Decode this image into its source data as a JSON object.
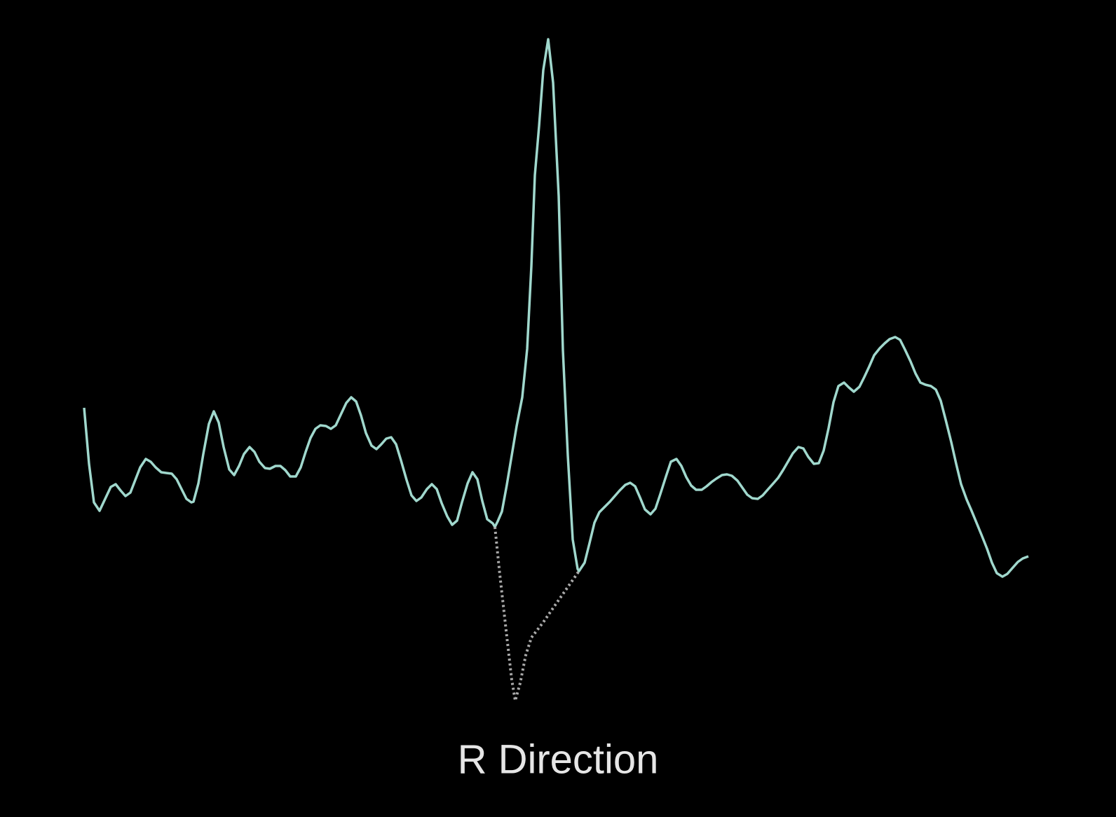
{
  "chart_data": {
    "type": "line",
    "title": "R Direction",
    "series": [
      {
        "color": "#a0d8cd",
        "style": "solid",
        "x": [
          120,
          127,
          134,
          142,
          150,
          158,
          165,
          172,
          179,
          186,
          193,
          200,
          208,
          215,
          222,
          230,
          237,
          245,
          252,
          259,
          266,
          273,
          276,
          283,
          290,
          298,
          305,
          312,
          319,
          327,
          334,
          341,
          348,
          356,
          363,
          370,
          378,
          385,
          393,
          400,
          407,
          414,
          422,
          429,
          436,
          443,
          450,
          457,
          465,
          472,
          479,
          486,
          494,
          501,
          508,
          515,
          522,
          530,
          537,
          544,
          551,
          558,
          565,
          572,
          580,
          587,
          594,
          601,
          609,
          616,
          623,
          630,
          638,
          645,
          652,
          659,
          667,
          674,
          681,
          688,
          695,
          703,
          706,
          710,
          716,
          723,
          730,
          737,
          745,
          752,
          758,
          763,
          769,
          775,
          782,
          789,
          797,
          803,
          810,
          817,
          824,
          826,
          834,
          841,
          848,
          855,
          863,
          870,
          877,
          884,
          892,
          899,
          906,
          913,
          920,
          928,
          935,
          942,
          950,
          957,
          965,
          972,
          979,
          986,
          993,
          1001,
          1008,
          1015,
          1022,
          1030,
          1037,
          1044,
          1052,
          1059,
          1066,
          1073,
          1081,
          1088,
          1095,
          1103,
          1110,
          1117,
          1124,
          1131,
          1139,
          1146,
          1153,
          1161,
          1168,
          1175,
          1182,
          1189,
          1196,
          1204,
          1211,
          1218,
          1226,
          1233,
          1240,
          1247,
          1255,
          1262,
          1269,
          1277,
          1284,
          1291,
          1299,
          1306,
          1313,
          1320,
          1328,
          1335,
          1342,
          1349,
          1357,
          1364,
          1371,
          1379,
          1386,
          1393,
          1400,
          1408,
          1415,
          1422,
          1430,
          1437,
          1444,
          1452,
          1459,
          1467
        ],
        "values": [
          584,
          504,
          449,
          437,
          454,
          471,
          475,
          466,
          458,
          463,
          481,
          499,
          511,
          507,
          499,
          492,
          491,
          490,
          482,
          468,
          454,
          449,
          450,
          476,
          518,
          561,
          579,
          563,
          528,
          496,
          488,
          501,
          518,
          528,
          521,
          507,
          498,
          497,
          501,
          501,
          495,
          486,
          486,
          499,
          521,
          541,
          554,
          559,
          558,
          554,
          559,
          574,
          591,
          599,
          593,
          573,
          548,
          530,
          525,
          532,
          540,
          542,
          532,
          509,
          481,
          459,
          451,
          456,
          468,
          475,
          468,
          448,
          429,
          417,
          423,
          449,
          476,
          492,
          482,
          451,
          425,
          419,
          414,
          422,
          436,
          474,
          516,
          558,
          599,
          668,
          786,
          916,
          986,
          1066,
          1110,
          1048,
          886,
          666,
          516,
          396,
          354,
          351,
          363,
          391,
          420,
          435,
          443,
          450,
          458,
          466,
          474,
          477,
          472,
          456,
          439,
          432,
          440,
          461,
          486,
          507,
          511,
          501,
          485,
          473,
          467,
          467,
          472,
          478,
          483,
          488,
          489,
          487,
          480,
          470,
          460,
          455,
          454,
          459,
          467,
          476,
          484,
          495,
          507,
          519,
          528,
          526,
          514,
          504,
          505,
          523,
          555,
          592,
          615,
          620,
          613,
          607,
          614,
          628,
          643,
          659,
          669,
          676,
          682,
          685,
          681,
          667,
          650,
          633,
          620,
          617,
          615,
          610,
          594,
          567,
          535,
          504,
          475,
          453,
          437,
          420,
          403,
          383,
          363,
          348,
          343,
          347,
          355,
          364,
          369,
          372
        ]
      },
      {
        "color": "#aaaaaa",
        "style": "dotted",
        "x": [
          706,
          713,
          722,
          730,
          735,
          742,
          750,
          758,
          775,
          800,
          826
        ],
        "values": [
          414,
          346,
          266,
          196,
          166,
          191,
          231,
          256,
          278,
          314,
          351
        ]
      }
    ]
  }
}
